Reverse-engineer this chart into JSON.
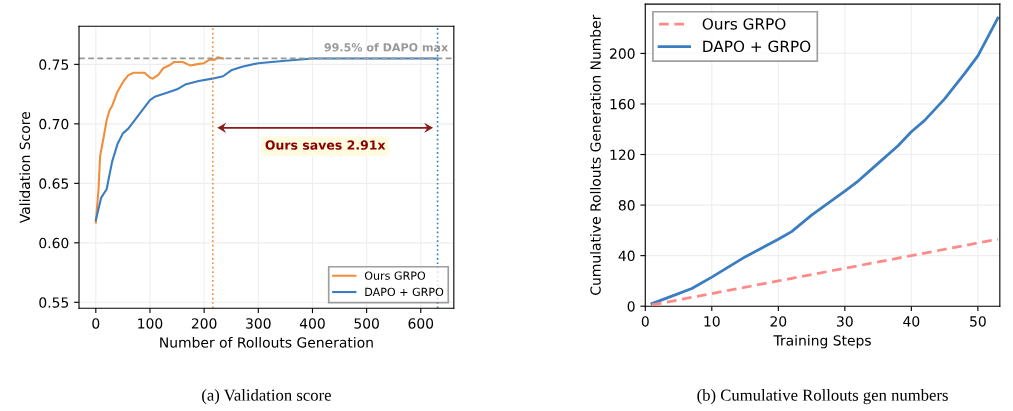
{
  "chart_data": [
    {
      "type": "line",
      "xlabel": "Number of Rollouts Generation",
      "ylabel": "Validation Score",
      "series": [
        {
          "name": "Ours GRPO",
          "color": "#f28e3c",
          "x": [
            0,
            5,
            8,
            15,
            20,
            25,
            30,
            40,
            50,
            60,
            70,
            80,
            90,
            100,
            105,
            115,
            125,
            135,
            145,
            160,
            170,
            175,
            185,
            200,
            210,
            220,
            225,
            235
          ],
          "values": [
            0.617,
            0.645,
            0.673,
            0.69,
            0.703,
            0.711,
            0.715,
            0.727,
            0.735,
            0.741,
            0.743,
            0.743,
            0.743,
            0.739,
            0.738,
            0.741,
            0.747,
            0.749,
            0.752,
            0.752,
            0.75,
            0.749,
            0.75,
            0.751,
            0.754,
            0.754,
            0.756,
            0.755
          ]
        },
        {
          "name": "DAPO + GRPO",
          "color": "#3a7dc0",
          "x": [
            0,
            10,
            20,
            30,
            40,
            50,
            60,
            80,
            100,
            110,
            130,
            150,
            165,
            190,
            215,
            235,
            250,
            270,
            300,
            350,
            400,
            500,
            600,
            631
          ],
          "values": [
            0.619,
            0.638,
            0.645,
            0.668,
            0.683,
            0.692,
            0.696,
            0.708,
            0.72,
            0.723,
            0.726,
            0.729,
            0.733,
            0.736,
            0.738,
            0.74,
            0.745,
            0.748,
            0.751,
            0.753,
            0.755,
            0.755,
            0.755,
            0.755
          ]
        }
      ],
      "xlim": [
        -31,
        661
      ],
      "xticks": [
        0,
        100,
        200,
        300,
        400,
        500,
        600
      ],
      "ylim": [
        0.545,
        0.782
      ],
      "yticks": [
        0.55,
        {
          "value": 0.6,
          "label": "0.60"
        },
        0.65,
        {
          "value": 0.7,
          "label": "0.70"
        },
        0.75
      ],
      "ref_lines": [
        {
          "axis": "y",
          "value": 0.755,
          "label": "99.5% of DAPO max",
          "color": "#999999",
          "line_style": "dashed"
        },
        {
          "axis": "x",
          "value": 216,
          "color": "#f28e3c",
          "line_style": "dotted"
        },
        {
          "axis": "x",
          "value": 631,
          "color": "#3a7dc0",
          "line_style": "dotted"
        }
      ],
      "annotations": [
        "Ours saves 2.91x",
        "(a) Validation score"
      ],
      "grid": true,
      "legend": "bottom right",
      "line_style": "solid",
      "marker": "none"
    },
    {
      "type": "line",
      "xlabel": "Training Steps",
      "ylabel": "Cumulative Rollouts Generation Number",
      "series": [
        {
          "name": "Ours GRPO",
          "color": "#ff8a8a",
          "line_style": "dashed",
          "x": [
            1,
            20,
            40,
            53
          ],
          "values": [
            1,
            20,
            40,
            53
          ]
        },
        {
          "name": "DAPO + GRPO",
          "color": "#3a7dc0",
          "line_style": "solid",
          "x": [
            1,
            4,
            7,
            10,
            15,
            20,
            22,
            25,
            30,
            32,
            35,
            38,
            40,
            42,
            45,
            48,
            50,
            53
          ],
          "values": [
            2,
            8,
            14,
            23,
            39,
            53,
            59,
            72,
            91,
            99,
            113,
            127,
            138,
            147,
            164,
            184,
            198,
            228
          ]
        }
      ],
      "xlim": [
        0,
        53.3
      ],
      "xticks": [
        0,
        10,
        20,
        30,
        40,
        50
      ],
      "ylim": [
        0,
        239
      ],
      "yticks": [
        0,
        40,
        80,
        120,
        160,
        200
      ],
      "annotations": [
        "(b) Cumulative Rollouts gen numbers"
      ],
      "grid": true,
      "legend": "top left",
      "marker": "none"
    }
  ]
}
